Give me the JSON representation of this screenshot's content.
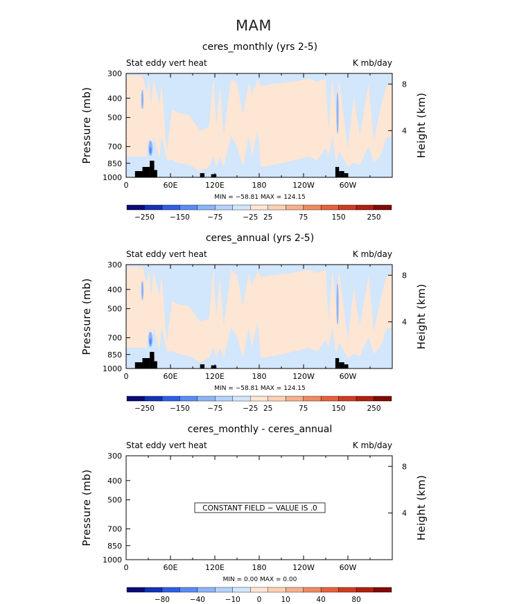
{
  "page_title": "MAM",
  "chart_data": [
    {
      "type": "heatmap",
      "title": "ceres_monthly (yrs 2-5)",
      "left_label": "Stat eddy vert heat",
      "right_label": "K mb/day",
      "ylabel": "Pressure (mb)",
      "ylabel_right": "Height (km)",
      "x_ticks": [
        "0",
        "60E",
        "120E",
        "180",
        "120W",
        "60W"
      ],
      "x_values": [
        0,
        60,
        120,
        180,
        240,
        300
      ],
      "xlim": [
        0,
        360
      ],
      "y_ticks": [
        "300",
        "400",
        "500",
        "700",
        "850",
        "1000"
      ],
      "y_values": [
        300,
        400,
        500,
        700,
        850,
        1000
      ],
      "ylim": [
        300,
        1000
      ],
      "y_scale": "log",
      "height_ticks": [
        "8",
        "4"
      ],
      "height_values": [
        8,
        4
      ],
      "minmax": "MIN = −58.81   MAX = 124.15",
      "min": -58.81,
      "max": 124.15,
      "colorbar_labels": [
        "−250",
        "−150",
        "−75",
        "−25",
        "25",
        "75",
        "150",
        "250"
      ],
      "constant_field": false
    },
    {
      "type": "heatmap",
      "title": "ceres_annual (yrs 2-5)",
      "left_label": "Stat eddy vert heat",
      "right_label": "K mb/day",
      "ylabel": "Pressure (mb)",
      "ylabel_right": "Height (km)",
      "x_ticks": [
        "0",
        "60E",
        "120E",
        "180",
        "120W",
        "60W"
      ],
      "x_values": [
        0,
        60,
        120,
        180,
        240,
        300
      ],
      "xlim": [
        0,
        360
      ],
      "y_ticks": [
        "300",
        "400",
        "500",
        "700",
        "850",
        "1000"
      ],
      "y_values": [
        300,
        400,
        500,
        700,
        850,
        1000
      ],
      "ylim": [
        300,
        1000
      ],
      "y_scale": "log",
      "height_ticks": [
        "8",
        "4"
      ],
      "height_values": [
        8,
        4
      ],
      "minmax": "MIN = −58.81   MAX = 124.15",
      "min": -58.81,
      "max": 124.15,
      "colorbar_labels": [
        "−250",
        "−150",
        "−75",
        "−25",
        "25",
        "75",
        "150",
        "250"
      ],
      "constant_field": false
    },
    {
      "type": "heatmap",
      "title": "ceres_monthly - ceres_annual",
      "left_label": "Stat eddy vert heat",
      "right_label": "K mb/day",
      "ylabel": "Pressure (mb)",
      "ylabel_right": "Height (km)",
      "x_ticks": [
        "0",
        "60E",
        "120E",
        "180",
        "120W",
        "60W"
      ],
      "x_values": [
        0,
        60,
        120,
        180,
        240,
        300
      ],
      "xlim": [
        0,
        360
      ],
      "y_ticks": [
        "300",
        "400",
        "500",
        "700",
        "850",
        "1000"
      ],
      "y_values": [
        300,
        400,
        500,
        700,
        850,
        1000
      ],
      "ylim": [
        300,
        1000
      ],
      "y_scale": "log",
      "height_ticks": [
        "8",
        "4"
      ],
      "height_values": [
        8,
        4
      ],
      "minmax": "MIN =    0.00   MAX =    0.00",
      "min": 0.0,
      "max": 0.0,
      "colorbar_labels": [
        "−80",
        "−40",
        "−10",
        "0",
        "10",
        "40",
        "80"
      ],
      "constant_field": true,
      "constant_text": "CONSTANT FIELD − VALUE IS .0"
    }
  ],
  "colors": {
    "palette": [
      "#0a0a78",
      "#1432b4",
      "#2e5ee6",
      "#5a8cf5",
      "#8cb4fa",
      "#b4d2fc",
      "#d2e6fc",
      "#fde6d4",
      "#fcd2b4",
      "#f8b08c",
      "#f08a62",
      "#e6603c",
      "#d03c20",
      "#b01e10",
      "#820a06"
    ],
    "positive_fill": "#fde6d4",
    "negative_fill": "#d2e6fc",
    "topography": "#000000"
  }
}
